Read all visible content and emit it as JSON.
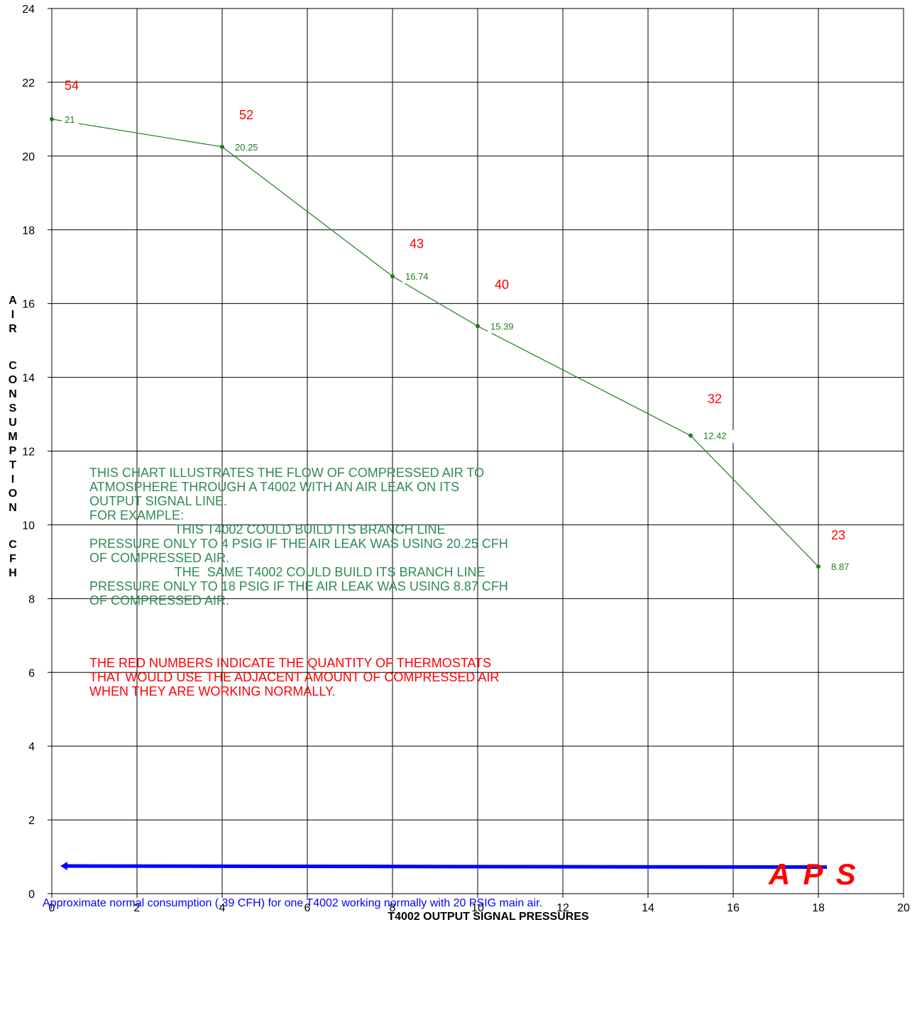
{
  "colors": {
    "series": "#1e7d1e",
    "count": "#ff0000",
    "note": "#2e8b57",
    "red_note": "#ff0000",
    "normal": "#0000ff",
    "grid": "#000000"
  },
  "chart_data": {
    "type": "line",
    "xlabel": "T4002 OUTPUT SIGNAL PRESSURES",
    "ylabel": "AIR CONSUMPTION CFH",
    "xlim": [
      0,
      20
    ],
    "ylim": [
      0,
      24
    ],
    "x_ticks": [
      "0",
      "2",
      "4",
      "6",
      "8",
      "10",
      "12",
      "14",
      "16",
      "18",
      "20"
    ],
    "y_ticks": [
      "0",
      "2",
      "4",
      "6",
      "8",
      "10",
      "12",
      "14",
      "16",
      "18",
      "20",
      "22",
      "24"
    ],
    "grid": true,
    "series": [
      {
        "x": [
          0,
          4,
          8,
          10,
          15,
          18
        ],
        "y": [
          21,
          20.25,
          16.74,
          15.39,
          12.42,
          8.87
        ],
        "labels": [
          "21",
          "20.25",
          "16.74",
          "15.39",
          "12.42",
          "8.87"
        ]
      }
    ],
    "thermostat_counts": [
      {
        "x": 0.3,
        "y": 21.8,
        "label": "54"
      },
      {
        "x": 4.4,
        "y": 21.0,
        "label": "52"
      },
      {
        "x": 8.4,
        "y": 17.5,
        "label": "43"
      },
      {
        "x": 10.4,
        "y": 16.4,
        "label": "40"
      },
      {
        "x": 15.4,
        "y": 13.3,
        "label": "32"
      },
      {
        "x": 18.3,
        "y": 9.6,
        "label": "23"
      }
    ],
    "normal_consumption": {
      "x": [
        0.3,
        18.2
      ],
      "y": [
        0.75,
        0.72
      ]
    }
  },
  "notes": {
    "green_lines": [
      "THIS CHART ILLUSTRATES THE FLOW OF COMPRESSED AIR TO",
      "ATMOSPHERE THROUGH A T4002 WITH AN AIR LEAK ON ITS",
      "OUTPUT SIGNAL LINE.",
      "FOR EXAMPLE:",
      "                        THIS T4002 COULD BUILD ITS BRANCH LINE",
      "PRESSURE ONLY TO 4 PSIG IF THE AIR LEAK WAS USING 20.25 CFH",
      "OF COMPRESSED AIR.",
      "                        THE  SAME T4002 COULD BUILD ITS BRANCH LINE",
      "PRESSURE ONLY TO 18 PSIG IF THE AIR LEAK WAS USING 8.87 CFH",
      "OF COMPRESSED AIR."
    ],
    "red_lines": [
      "THE RED NUMBERS INDICATE THE QUANTITY OF THERMOSTATS",
      "THAT WOULD USE THE ADJACENT AMOUNT OF COMPRESSED AIR",
      "WHEN THEY ARE WORKING NORMALLY."
    ],
    "normal_consumption": "Approximate normal consumption  (.39 CFH) for one T4002 working normally with 20 PSIG main air.",
    "brand": "A P S"
  }
}
